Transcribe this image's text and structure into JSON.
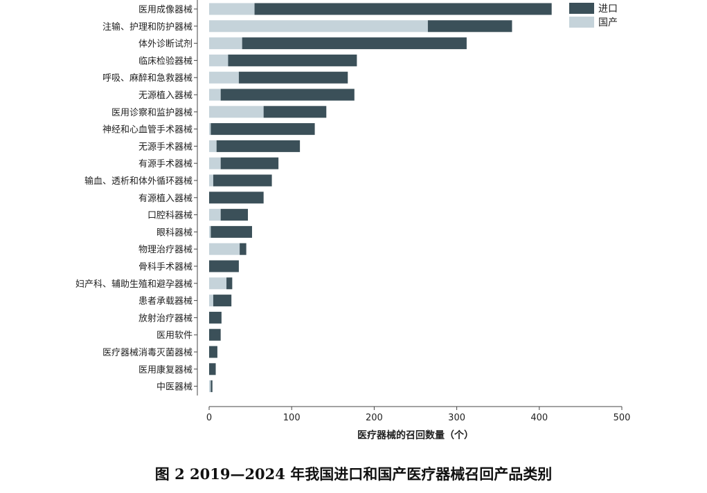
{
  "caption": "图 2   2019—2024 年我国进口和国产医疗器械召回产品类别",
  "chart_data": {
    "type": "bar",
    "orientation": "horizontal",
    "stacked": true,
    "xlabel": "医疗器械的召回数量（个）",
    "xlim": [
      0,
      500
    ],
    "xticks": [
      0,
      100,
      200,
      300,
      400,
      500
    ],
    "legend_position": "top-right",
    "categories": [
      "医用成像器械",
      "注输、护理和防护器械",
      "体外诊断试剂",
      "临床检验器械",
      "呼吸、麻醉和急救器械",
      "无源植入器械",
      "医用诊察和监护器械",
      "神经和心血管手术器械",
      "无源手术器械",
      "有源手术器械",
      "输血、透析和体外循环器械",
      "有源植入器械",
      "口腔科器械",
      "眼科器械",
      "物理治疗器械",
      "骨科手术器械",
      "妇产科、辅助生殖和避孕器械",
      "患者承载器械",
      "放射治疗器械",
      "医用软件",
      "医疗器械消毒灭菌器械",
      "医用康复器械",
      "中医器械"
    ],
    "series": [
      {
        "name": "国产",
        "color": "#c5d3da",
        "values": [
          55,
          265,
          40,
          23,
          36,
          14,
          66,
          2,
          9,
          14,
          5,
          0,
          14,
          2,
          37,
          0,
          21,
          5,
          0,
          0,
          0,
          0,
          2
        ]
      },
      {
        "name": "进口",
        "color": "#3b5059",
        "values": [
          360,
          102,
          272,
          156,
          132,
          162,
          76,
          126,
          101,
          70,
          71,
          66,
          33,
          50,
          8,
          36,
          7,
          22,
          15,
          14,
          10,
          8,
          2
        ]
      }
    ]
  }
}
